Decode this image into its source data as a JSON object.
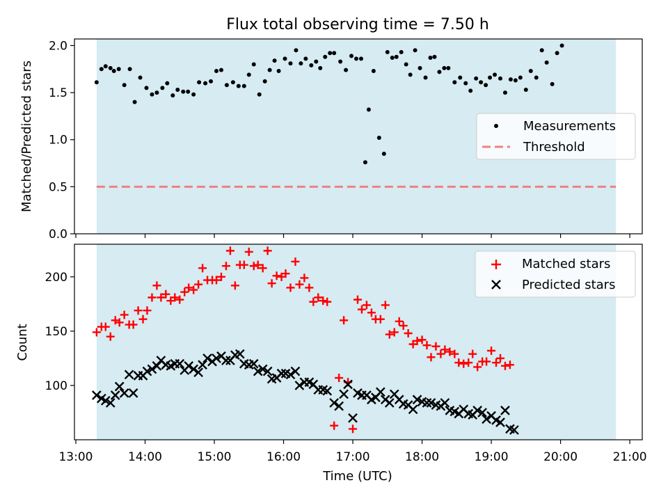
{
  "chart_data": {
    "type": "scatter",
    "title": "Flux total observing time = 7.50 h",
    "xlabel": "Time (UTC)",
    "xlim": [
      12.98,
      21.18
    ],
    "xticks": [
      13,
      14,
      15,
      16,
      17,
      18,
      19,
      20,
      21
    ],
    "xtick_labels": [
      "13:00",
      "14:00",
      "15:00",
      "16:00",
      "17:00",
      "18:00",
      "19:00",
      "20:00",
      "21:00"
    ],
    "observing_window": [
      13.3,
      20.8
    ],
    "colors": {
      "span": "#add8e6",
      "measure": "#000000",
      "threshold": "#f08080",
      "matched": "#ff0000",
      "predicted": "#000000"
    },
    "top_panel": {
      "ylabel": "Matched/Predicted stars",
      "ylim": [
        0,
        2.07
      ],
      "yticks": [
        0.0,
        0.5,
        1.0,
        1.5,
        2.0
      ],
      "ytick_labels": [
        "0.0",
        "0.5",
        "1.0",
        "1.5",
        "2.0"
      ],
      "legend": [
        "Measurements",
        "Threshold"
      ],
      "threshold": 0.5,
      "measurements": [
        [
          13.3,
          1.61
        ],
        [
          13.37,
          1.75
        ],
        [
          13.43,
          1.78
        ],
        [
          13.5,
          1.76
        ],
        [
          13.55,
          1.73
        ],
        [
          13.62,
          1.75
        ],
        [
          13.7,
          1.58
        ],
        [
          13.78,
          1.75
        ],
        [
          13.85,
          1.4
        ],
        [
          13.93,
          1.66
        ],
        [
          14.02,
          1.55
        ],
        [
          14.1,
          1.48
        ],
        [
          14.17,
          1.5
        ],
        [
          14.25,
          1.55
        ],
        [
          14.32,
          1.6
        ],
        [
          14.4,
          1.47
        ],
        [
          14.47,
          1.53
        ],
        [
          14.55,
          1.51
        ],
        [
          14.62,
          1.51
        ],
        [
          14.7,
          1.48
        ],
        [
          14.78,
          1.61
        ],
        [
          14.87,
          1.6
        ],
        [
          14.95,
          1.62
        ],
        [
          15.03,
          1.73
        ],
        [
          15.1,
          1.74
        ],
        [
          15.18,
          1.58
        ],
        [
          15.27,
          1.61
        ],
        [
          15.35,
          1.57
        ],
        [
          15.43,
          1.57
        ],
        [
          15.5,
          1.69
        ],
        [
          15.57,
          1.8
        ],
        [
          15.65,
          1.48
        ],
        [
          15.73,
          1.62
        ],
        [
          15.8,
          1.74
        ],
        [
          15.87,
          1.84
        ],
        [
          15.93,
          1.73
        ],
        [
          16.02,
          1.86
        ],
        [
          16.1,
          1.81
        ],
        [
          16.18,
          1.95
        ],
        [
          16.25,
          1.81
        ],
        [
          16.32,
          1.86
        ],
        [
          16.4,
          1.79
        ],
        [
          16.47,
          1.83
        ],
        [
          16.53,
          1.76
        ],
        [
          16.6,
          1.88
        ],
        [
          16.67,
          1.92
        ],
        [
          16.73,
          1.92
        ],
        [
          16.82,
          1.83
        ],
        [
          16.9,
          1.74
        ],
        [
          16.98,
          1.89
        ],
        [
          17.05,
          1.86
        ],
        [
          17.12,
          1.86
        ],
        [
          17.18,
          0.76
        ],
        [
          17.23,
          1.32
        ],
        [
          17.3,
          1.73
        ],
        [
          17.38,
          1.02
        ],
        [
          17.45,
          0.85
        ],
        [
          17.5,
          1.93
        ],
        [
          17.57,
          1.87
        ],
        [
          17.63,
          1.88
        ],
        [
          17.7,
          1.93
        ],
        [
          17.77,
          1.8
        ],
        [
          17.83,
          1.69
        ],
        [
          17.9,
          1.95
        ],
        [
          17.97,
          1.76
        ],
        [
          18.05,
          1.66
        ],
        [
          18.12,
          1.87
        ],
        [
          18.18,
          1.88
        ],
        [
          18.25,
          1.72
        ],
        [
          18.32,
          1.76
        ],
        [
          18.38,
          1.76
        ],
        [
          18.47,
          1.61
        ],
        [
          18.55,
          1.66
        ],
        [
          18.63,
          1.6
        ],
        [
          18.7,
          1.52
        ],
        [
          18.78,
          1.65
        ],
        [
          18.85,
          1.61
        ],
        [
          18.92,
          1.58
        ],
        [
          18.98,
          1.66
        ],
        [
          19.05,
          1.69
        ],
        [
          19.13,
          1.65
        ],
        [
          19.2,
          1.5
        ],
        [
          19.28,
          1.64
        ],
        [
          19.35,
          1.63
        ],
        [
          19.42,
          1.66
        ],
        [
          19.5,
          1.53
        ],
        [
          19.57,
          1.73
        ],
        [
          19.65,
          1.66
        ],
        [
          19.73,
          1.95
        ],
        [
          19.8,
          1.82
        ],
        [
          19.88,
          1.59
        ],
        [
          19.95,
          1.92
        ],
        [
          20.02,
          2.0
        ]
      ]
    },
    "bottom_panel": {
      "ylabel": "Count",
      "ylim": [
        50,
        230
      ],
      "yticks": [
        100,
        150,
        200
      ],
      "ytick_labels": [
        "100",
        "150",
        "200"
      ],
      "legend": [
        "Matched stars",
        "Predicted stars"
      ],
      "matched": [
        [
          13.3,
          149
        ],
        [
          13.37,
          154
        ],
        [
          13.43,
          154
        ],
        [
          13.5,
          145
        ],
        [
          13.57,
          160
        ],
        [
          13.63,
          158
        ],
        [
          13.7,
          165
        ],
        [
          13.77,
          156
        ],
        [
          13.83,
          156
        ],
        [
          13.9,
          169
        ],
        [
          13.97,
          161
        ],
        [
          14.03,
          169
        ],
        [
          14.1,
          181
        ],
        [
          14.17,
          192
        ],
        [
          14.23,
          181
        ],
        [
          14.3,
          184
        ],
        [
          14.37,
          178
        ],
        [
          14.43,
          181
        ],
        [
          14.5,
          179
        ],
        [
          14.57,
          186
        ],
        [
          14.63,
          190
        ],
        [
          14.7,
          188
        ],
        [
          14.77,
          193
        ],
        [
          14.83,
          208
        ],
        [
          14.9,
          197
        ],
        [
          14.97,
          197
        ],
        [
          15.03,
          197
        ],
        [
          15.1,
          200
        ],
        [
          15.17,
          210
        ],
        [
          15.23,
          224
        ],
        [
          15.3,
          192
        ],
        [
          15.37,
          211
        ],
        [
          15.43,
          211
        ],
        [
          15.5,
          223
        ],
        [
          15.57,
          210
        ],
        [
          15.63,
          211
        ],
        [
          15.7,
          208
        ],
        [
          15.77,
          224
        ],
        [
          15.83,
          194
        ],
        [
          15.9,
          201
        ],
        [
          15.97,
          200
        ],
        [
          16.03,
          203
        ],
        [
          16.1,
          190
        ],
        [
          16.17,
          214
        ],
        [
          16.23,
          193
        ],
        [
          16.3,
          199
        ],
        [
          16.37,
          190
        ],
        [
          16.43,
          177
        ],
        [
          16.5,
          181
        ],
        [
          16.57,
          178
        ],
        [
          16.63,
          177
        ],
        [
          16.73,
          63
        ],
        [
          16.8,
          107
        ],
        [
          16.87,
          160
        ],
        [
          16.93,
          103
        ],
        [
          17.0,
          60
        ],
        [
          17.07,
          179
        ],
        [
          17.13,
          170
        ],
        [
          17.2,
          174
        ],
        [
          17.27,
          167
        ],
        [
          17.33,
          161
        ],
        [
          17.4,
          161
        ],
        [
          17.47,
          174
        ],
        [
          17.53,
          147
        ],
        [
          17.6,
          149
        ],
        [
          17.67,
          159
        ],
        [
          17.73,
          155
        ],
        [
          17.8,
          148
        ],
        [
          17.87,
          138
        ],
        [
          17.93,
          141
        ],
        [
          18.0,
          142
        ],
        [
          18.07,
          137
        ],
        [
          18.13,
          126
        ],
        [
          18.2,
          136
        ],
        [
          18.27,
          129
        ],
        [
          18.33,
          133
        ],
        [
          18.4,
          131
        ],
        [
          18.47,
          129
        ],
        [
          18.53,
          121
        ],
        [
          18.6,
          120
        ],
        [
          18.67,
          121
        ],
        [
          18.73,
          129
        ],
        [
          18.8,
          117
        ],
        [
          18.87,
          122
        ],
        [
          18.93,
          122
        ],
        [
          19.0,
          132
        ],
        [
          19.07,
          121
        ],
        [
          19.13,
          125
        ],
        [
          19.2,
          118
        ],
        [
          19.27,
          119
        ]
      ],
      "predicted": [
        [
          13.3,
          91
        ],
        [
          13.37,
          88
        ],
        [
          13.43,
          86
        ],
        [
          13.5,
          84
        ],
        [
          13.57,
          91
        ],
        [
          13.63,
          99
        ],
        [
          13.7,
          93
        ],
        [
          13.77,
          110
        ],
        [
          13.83,
          93
        ],
        [
          13.9,
          109
        ],
        [
          13.97,
          109
        ],
        [
          14.03,
          113
        ],
        [
          14.1,
          115
        ],
        [
          14.17,
          118
        ],
        [
          14.23,
          123
        ],
        [
          14.3,
          119
        ],
        [
          14.37,
          118
        ],
        [
          14.43,
          120
        ],
        [
          14.5,
          120
        ],
        [
          14.57,
          114
        ],
        [
          14.63,
          118
        ],
        [
          14.7,
          115
        ],
        [
          14.77,
          112
        ],
        [
          14.83,
          119
        ],
        [
          14.9,
          125
        ],
        [
          14.97,
          122
        ],
        [
          15.03,
          125
        ],
        [
          15.1,
          127
        ],
        [
          15.17,
          123
        ],
        [
          15.23,
          123
        ],
        [
          15.3,
          128
        ],
        [
          15.37,
          129
        ],
        [
          15.43,
          120
        ],
        [
          15.5,
          119
        ],
        [
          15.57,
          120
        ],
        [
          15.63,
          113
        ],
        [
          15.7,
          115
        ],
        [
          15.77,
          113
        ],
        [
          15.83,
          106
        ],
        [
          15.9,
          107
        ],
        [
          15.97,
          111
        ],
        [
          16.03,
          111
        ],
        [
          16.1,
          110
        ],
        [
          16.17,
          113
        ],
        [
          16.23,
          100
        ],
        [
          16.3,
          103
        ],
        [
          16.37,
          103
        ],
        [
          16.43,
          101
        ],
        [
          16.5,
          96
        ],
        [
          16.57,
          96
        ],
        [
          16.63,
          95
        ],
        [
          16.73,
          84
        ],
        [
          16.8,
          81
        ],
        [
          16.87,
          92
        ],
        [
          16.93,
          101
        ],
        [
          17.0,
          70
        ],
        [
          17.07,
          93
        ],
        [
          17.13,
          91
        ],
        [
          17.2,
          91
        ],
        [
          17.27,
          87
        ],
        [
          17.33,
          89
        ],
        [
          17.4,
          94
        ],
        [
          17.47,
          87
        ],
        [
          17.53,
          84
        ],
        [
          17.6,
          92
        ],
        [
          17.67,
          87
        ],
        [
          17.73,
          83
        ],
        [
          17.8,
          82
        ],
        [
          17.87,
          78
        ],
        [
          17.93,
          87
        ],
        [
          18.0,
          85
        ],
        [
          18.07,
          84
        ],
        [
          18.13,
          84
        ],
        [
          18.2,
          82
        ],
        [
          18.27,
          81
        ],
        [
          18.33,
          84
        ],
        [
          18.4,
          77
        ],
        [
          18.47,
          76
        ],
        [
          18.53,
          74
        ],
        [
          18.6,
          78
        ],
        [
          18.67,
          74
        ],
        [
          18.73,
          73
        ],
        [
          18.8,
          77
        ],
        [
          18.87,
          75
        ],
        [
          18.93,
          69
        ],
        [
          19.0,
          72
        ],
        [
          19.07,
          68
        ],
        [
          19.13,
          66
        ],
        [
          19.2,
          77
        ],
        [
          19.27,
          60
        ],
        [
          19.33,
          59
        ]
      ]
    }
  }
}
